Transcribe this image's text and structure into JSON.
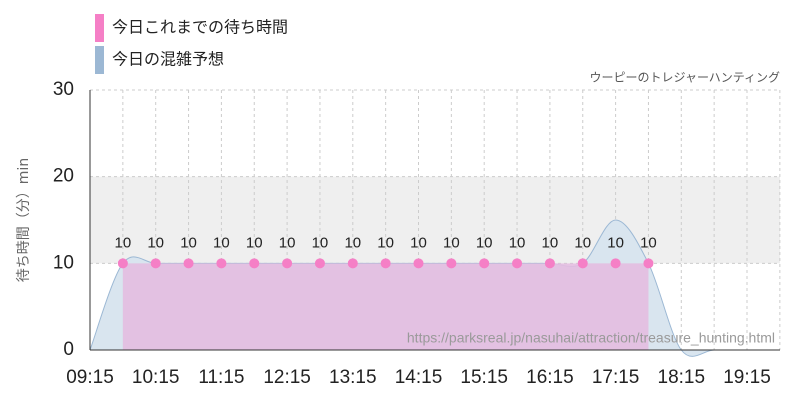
{
  "chart_data": {
    "type": "area",
    "subtitle": "ウーピーのトレジャーハンティング",
    "y_label": "待ち時間（分）min",
    "watermark": "https://parksreal.jp/nasuhai/attraction/treasure_hunting.html",
    "categories": [
      "09:15",
      null,
      "10:15",
      null,
      "11:15",
      null,
      "12:15",
      null,
      "13:15",
      null,
      "14:15",
      null,
      "15:15",
      null,
      "16:15",
      null,
      "17:15",
      null,
      "18:15",
      null,
      "19:15",
      null
    ],
    "series": [
      {
        "name": "今日これまでの待ち時間",
        "color": "#f57fc6",
        "fill": "#e3bde0",
        "values": [
          null,
          10,
          10,
          10,
          10,
          10,
          10,
          10,
          10,
          10,
          10,
          10,
          10,
          10,
          10,
          10,
          10,
          10,
          null,
          null,
          null,
          null
        ]
      },
      {
        "name": "今日の混雑予想",
        "color": "#9cb8d4",
        "fill": "#d9e5ef",
        "values": [
          0,
          10,
          10,
          10,
          10,
          10,
          10,
          10,
          10,
          10,
          10,
          10,
          10,
          10,
          10,
          10,
          15,
          10,
          0,
          0,
          0,
          0
        ]
      }
    ],
    "ylim": [
      0,
      30
    ],
    "yticks": [
      0,
      10,
      20,
      30
    ],
    "shaded_range": [
      10,
      20
    ],
    "grid": true
  }
}
